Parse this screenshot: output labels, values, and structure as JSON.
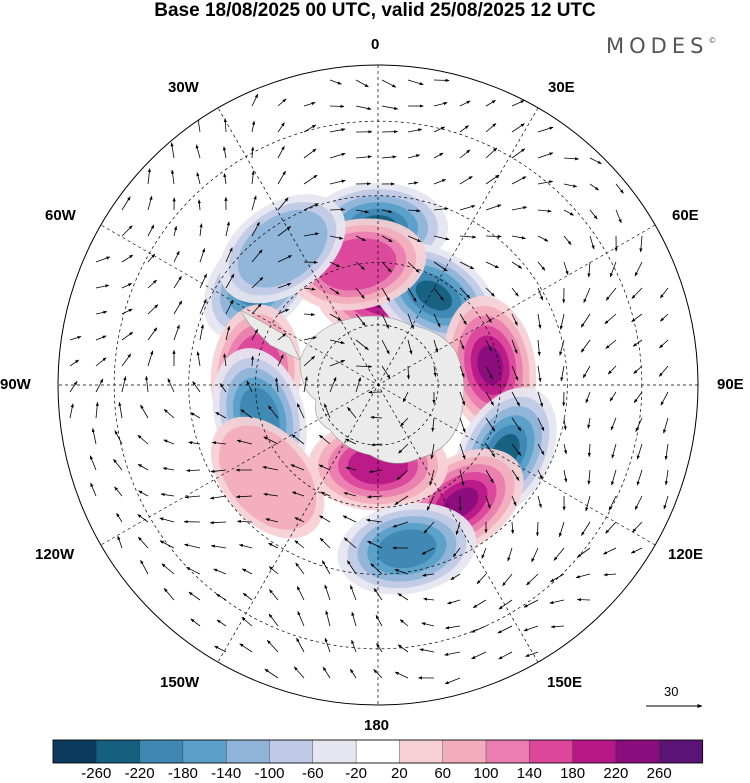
{
  "title": "Base 18/08/2025 00 UTC, valid 25/08/2025 12 UTC",
  "brand": "MODES",
  "brand_mark": "©",
  "longitude_labels": {
    "top": "0",
    "top_right": "30E",
    "upper_right": "60E",
    "right": "90E",
    "lower_right": "120E",
    "bottom_right": "150E",
    "bottom": "180",
    "bottom_left": "150W",
    "lower_left": "120W",
    "left": "90W",
    "upper_left": "60W",
    "top_left": "30W"
  },
  "vector_scale_label": "30",
  "colorbar": {
    "colors": [
      "#0c3a5e",
      "#15607f",
      "#3f88b4",
      "#5aa0c8",
      "#8fb3d9",
      "#c0cae6",
      "#e6e6f0",
      "#ffffff",
      "#f7d1d6",
      "#f2adbd",
      "#ea7eb0",
      "#dc479c",
      "#b81788",
      "#8a0d7e",
      "#5b1475"
    ],
    "tick_labels": [
      "-260",
      "-220",
      "-180",
      "-140",
      "-100",
      "-60",
      "-20",
      "20",
      "60",
      "100",
      "140",
      "180",
      "220",
      "260"
    ]
  },
  "chart_data": {
    "type": "heatmap",
    "projection": "south-polar-stereographic",
    "title": "Base 18/08/2025 00 UTC, valid 25/08/2025 12 UTC",
    "colorbar_levels": [
      -260,
      -220,
      -180,
      -140,
      -100,
      -60,
      -20,
      20,
      60,
      100,
      140,
      180,
      220,
      260
    ],
    "vector_reference": 30,
    "anomalies": [
      {
        "lon": 0,
        "lat": -52,
        "value": -250
      },
      {
        "lon": -48,
        "lat": -52,
        "value": -250
      },
      {
        "lon": 5,
        "lat": -68,
        "value": 240
      },
      {
        "lon": 32,
        "lat": -64,
        "value": -260
      },
      {
        "lon": 80,
        "lat": -62,
        "value": 240
      },
      {
        "lon": -85,
        "lat": -60,
        "value": 160
      },
      {
        "lon": -10,
        "lat": -60,
        "value": 140
      },
      {
        "lon": -105,
        "lat": -60,
        "value": -200
      },
      {
        "lon": 118,
        "lat": -55,
        "value": -230
      },
      {
        "lon": 145,
        "lat": -55,
        "value": 230
      },
      {
        "lon": 180,
        "lat": -70,
        "value": 180
      },
      {
        "lon": 170,
        "lat": -50,
        "value": -200
      },
      {
        "lon": -35,
        "lat": -50,
        "value": -120
      },
      {
        "lon": -130,
        "lat": -55,
        "value": 80
      }
    ]
  }
}
